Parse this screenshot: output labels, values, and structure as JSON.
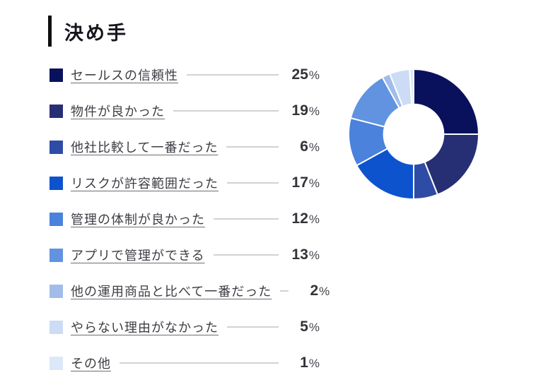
{
  "header": {
    "title": "決め手"
  },
  "legend": {
    "items": [
      {
        "label": "セールスの信頼性",
        "value": "25",
        "unit": "%",
        "color": "#0a115c"
      },
      {
        "label": "物件が良かった",
        "value": "19",
        "unit": "%",
        "color": "#262f74"
      },
      {
        "label": "他社比較して一番だった",
        "value": "6",
        "unit": "%",
        "color": "#2e4ba6"
      },
      {
        "label": "リスクが許容範囲だった",
        "value": "17",
        "unit": "%",
        "color": "#0d53cd"
      },
      {
        "label": "管理の体制が良かった",
        "value": "12",
        "unit": "%",
        "color": "#4a82dc"
      },
      {
        "label": "アプリで管理ができる",
        "value": "13",
        "unit": "%",
        "color": "#6193e0"
      },
      {
        "label": "他の運用商品と比べて一番だった",
        "value": "2",
        "unit": "%",
        "color": "#a1bce9"
      },
      {
        "label": "やらない理由がなかった",
        "value": "5",
        "unit": "%",
        "color": "#ccdcf4"
      },
      {
        "label": "その他",
        "value": "1",
        "unit": "%",
        "color": "#dce8f8"
      }
    ]
  },
  "chart_data": {
    "type": "pie",
    "title": "決め手",
    "categories": [
      "セールスの信頼性",
      "物件が良かった",
      "他社比較して一番だった",
      "リスクが許容範囲だった",
      "管理の体制が良かった",
      "アプリで管理ができる",
      "他の運用商品と比べて一番だった",
      "やらない理由がなかった",
      "その他"
    ],
    "values": [
      25,
      19,
      6,
      17,
      12,
      13,
      2,
      5,
      1
    ],
    "unit": "%",
    "colors": [
      "#0a115c",
      "#262f74",
      "#2e4ba6",
      "#0d53cd",
      "#4a82dc",
      "#6193e0",
      "#a1bce9",
      "#ccdcf4",
      "#dce8f8"
    ],
    "donut": true,
    "inner_radius_ratio": 0.46,
    "start_angle": "top",
    "direction": "clockwise",
    "slice_gap_color": "#ffffff",
    "legend_position": "left"
  }
}
